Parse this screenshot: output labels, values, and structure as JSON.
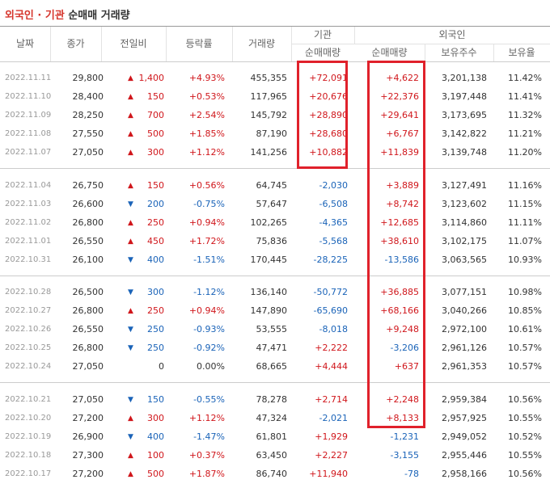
{
  "title": {
    "part1": "외국인 · 기관",
    "part2": "순매매 거래량"
  },
  "header": {
    "top": [
      "날짜",
      "종가",
      "전일비",
      "등락률",
      "거래량",
      "기관",
      "외국인"
    ],
    "sub": [
      "순매매량",
      "순매매량",
      "보유주수",
      "보유율"
    ]
  },
  "groups": [
    {
      "rows": [
        [
          "2022.11.11",
          "29,800",
          "▲",
          "1,400",
          "+4.93%",
          "455,355",
          "+72,091",
          "+4,622",
          "3,201,138",
          "11.42%"
        ],
        [
          "2022.11.10",
          "28,400",
          "▲",
          "150",
          "+0.53%",
          "117,965",
          "+20,676",
          "+22,376",
          "3,197,448",
          "11.41%"
        ],
        [
          "2022.11.09",
          "28,250",
          "▲",
          "700",
          "+2.54%",
          "145,792",
          "+28,890",
          "+29,641",
          "3,173,695",
          "11.32%"
        ],
        [
          "2022.11.08",
          "27,550",
          "▲",
          "500",
          "+1.85%",
          "87,190",
          "+28,680",
          "+6,767",
          "3,142,822",
          "11.21%"
        ],
        [
          "2022.11.07",
          "27,050",
          "▲",
          "300",
          "+1.12%",
          "141,256",
          "+10,882",
          "+11,839",
          "3,139,748",
          "11.20%"
        ]
      ]
    },
    {
      "rows": [
        [
          "2022.11.04",
          "26,750",
          "▲",
          "150",
          "+0.56%",
          "64,745",
          "-2,030",
          "+3,889",
          "3,127,491",
          "11.16%"
        ],
        [
          "2022.11.03",
          "26,600",
          "▼",
          "200",
          "-0.75%",
          "57,647",
          "-6,508",
          "+8,742",
          "3,123,602",
          "11.15%"
        ],
        [
          "2022.11.02",
          "26,800",
          "▲",
          "250",
          "+0.94%",
          "102,265",
          "-4,365",
          "+12,685",
          "3,114,860",
          "11.11%"
        ],
        [
          "2022.11.01",
          "26,550",
          "▲",
          "450",
          "+1.72%",
          "75,836",
          "-5,568",
          "+38,610",
          "3,102,175",
          "11.07%"
        ],
        [
          "2022.10.31",
          "26,100",
          "▼",
          "400",
          "-1.51%",
          "170,445",
          "-28,225",
          "-13,586",
          "3,063,565",
          "10.93%"
        ]
      ]
    },
    {
      "rows": [
        [
          "2022.10.28",
          "26,500",
          "▼",
          "300",
          "-1.12%",
          "136,140",
          "-50,772",
          "+36,885",
          "3,077,151",
          "10.98%"
        ],
        [
          "2022.10.27",
          "26,800",
          "▲",
          "250",
          "+0.94%",
          "147,890",
          "-65,690",
          "+68,166",
          "3,040,266",
          "10.85%"
        ],
        [
          "2022.10.26",
          "26,550",
          "▼",
          "250",
          "-0.93%",
          "53,555",
          "-8,018",
          "+9,248",
          "2,972,100",
          "10.61%"
        ],
        [
          "2022.10.25",
          "26,800",
          "▼",
          "250",
          "-0.92%",
          "47,471",
          "+2,222",
          "-3,206",
          "2,961,126",
          "10.57%"
        ],
        [
          "2022.10.24",
          "27,050",
          null,
          "0",
          "0.00%",
          "68,665",
          "+4,444",
          "+637",
          "2,961,353",
          "10.57%"
        ]
      ]
    },
    {
      "rows": [
        [
          "2022.10.21",
          "27,050",
          "▼",
          "150",
          "-0.55%",
          "78,278",
          "+2,714",
          "+2,248",
          "2,959,384",
          "10.56%"
        ],
        [
          "2022.10.20",
          "27,200",
          "▲",
          "300",
          "+1.12%",
          "47,324",
          "-2,021",
          "+8,133",
          "2,957,925",
          "10.55%"
        ],
        [
          "2022.10.19",
          "26,900",
          "▼",
          "400",
          "-1.47%",
          "61,801",
          "+1,929",
          "-1,231",
          "2,949,052",
          "10.52%"
        ],
        [
          "2022.10.18",
          "27,300",
          "▲",
          "100",
          "+0.37%",
          "63,450",
          "+2,227",
          "-3,155",
          "2,955,446",
          "10.55%"
        ],
        [
          "2022.10.17",
          "27,200",
          "▲",
          "500",
          "+1.87%",
          "86,740",
          "+11,940",
          "-78",
          "2,958,166",
          "10.56%"
        ]
      ]
    }
  ]
}
